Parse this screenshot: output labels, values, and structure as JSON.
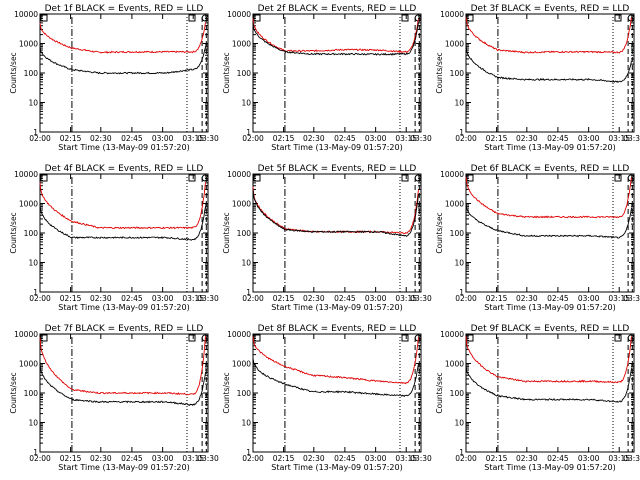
{
  "chart_data": [
    {
      "type": "line",
      "title": "Det 1f BLACK = Events, RED = LLD",
      "black": [
        800,
        130,
        100,
        100,
        100,
        130,
        800
      ],
      "red": [
        5000,
        700,
        500,
        520,
        520,
        520,
        5000
      ]
    },
    {
      "type": "line",
      "title": "Det 2f BLACK = Events, RED = LLD",
      "black": [
        5000,
        520,
        440,
        440,
        430,
        440,
        5000
      ],
      "red": [
        7000,
        560,
        560,
        620,
        600,
        520,
        7000
      ]
    },
    {
      "type": "line",
      "title": "Det 3f BLACK = Events, RED = LLD",
      "black": [
        900,
        70,
        60,
        60,
        60,
        50,
        250
      ],
      "red": [
        8000,
        600,
        500,
        520,
        520,
        500,
        8000
      ]
    },
    {
      "type": "line",
      "title": "Det 4f BLACK = Events, RED = LLD",
      "black": [
        900,
        70,
        70,
        70,
        70,
        60,
        800
      ],
      "red": [
        5000,
        250,
        150,
        150,
        150,
        150,
        5000
      ]
    },
    {
      "type": "line",
      "title": "Det 5f BLACK = Events, RED = LLD",
      "black": [
        3000,
        130,
        110,
        110,
        110,
        80,
        2000
      ],
      "red": [
        3500,
        140,
        110,
        110,
        110,
        100,
        3000
      ]
    },
    {
      "type": "line",
      "title": "Det 6f BLACK = Events, RED = LLD",
      "black": [
        1000,
        120,
        80,
        80,
        80,
        70,
        700
      ],
      "red": [
        8000,
        450,
        350,
        350,
        350,
        350,
        8000
      ]
    },
    {
      "type": "line",
      "title": "Det 7f BLACK = Events, RED = LLD",
      "black": [
        1000,
        60,
        50,
        50,
        50,
        40,
        500
      ],
      "red": [
        8000,
        130,
        100,
        100,
        100,
        90,
        8000
      ]
    },
    {
      "type": "line",
      "title": "Det 8f BLACK = Events, RED = LLD",
      "black": [
        1500,
        200,
        110,
        110,
        90,
        80,
        1000
      ],
      "red": [
        8000,
        800,
        400,
        330,
        250,
        220,
        8000
      ]
    },
    {
      "type": "line",
      "title": "Det 9f BLACK = Events, RED = LLD",
      "black": [
        900,
        80,
        60,
        60,
        60,
        50,
        700
      ],
      "red": [
        8000,
        350,
        250,
        250,
        250,
        230,
        8000
      ]
    }
  ],
  "shared": {
    "xlabel": "Start Time (13-May-09 01:57:20)",
    "ylabel": "Counts/sec",
    "x_ticks": [
      "02:00",
      "02:15",
      "02:30",
      "02:45",
      "03:00",
      "03:15",
      "03:30"
    ],
    "y_ticks": [
      "1",
      "10",
      "100",
      "1000",
      "10000"
    ],
    "ylim": [
      1,
      10000
    ],
    "yscale": "log",
    "series_colors": {
      "black": "#000000",
      "red": "#e00000"
    }
  }
}
